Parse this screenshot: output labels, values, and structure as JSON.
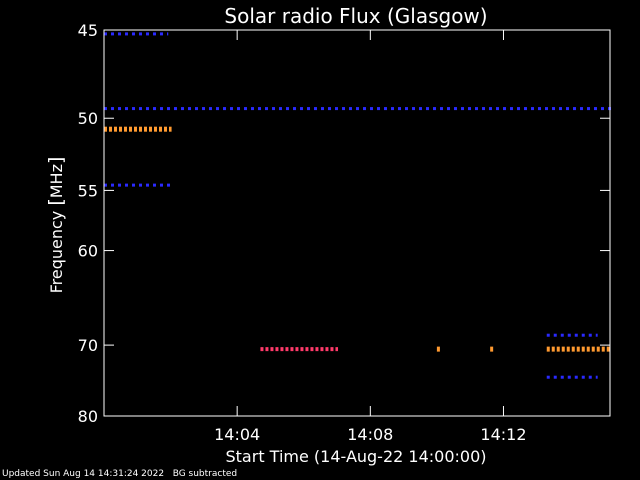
{
  "chart_data": {
    "type": "heatmap",
    "title": "Solar radio Flux (Glasgow)",
    "xlabel": "Start Time (14-Aug-22 14:00:00)",
    "ylabel_text": "Frequency ",
    "ylabel_unit": "MHz",
    "x_range_minutes": [
      0,
      15.2
    ],
    "y_range_mhz": [
      45,
      80
    ],
    "x_ticks": [
      {
        "minute": 4,
        "label": "14:04"
      },
      {
        "minute": 8,
        "label": "14:08"
      },
      {
        "minute": 12,
        "label": "14:12"
      }
    ],
    "y_ticks": [
      {
        "mhz": 45,
        "label": "45"
      },
      {
        "mhz": 50,
        "label": "50"
      },
      {
        "mhz": 55,
        "label": "55"
      },
      {
        "mhz": 60,
        "label": "60"
      },
      {
        "mhz": 70,
        "label": "70"
      },
      {
        "mhz": 80,
        "label": "80"
      }
    ],
    "bands": [
      {
        "mhz": 45.2,
        "t_start": 0.0,
        "t_end": 1.9,
        "intensity": "low"
      },
      {
        "mhz": 49.4,
        "t_start": 0.0,
        "t_end": 15.2,
        "intensity": "low"
      },
      {
        "mhz": 50.7,
        "t_start": 0.0,
        "t_end": 2.0,
        "intensity": "high"
      },
      {
        "mhz": 54.6,
        "t_start": 0.0,
        "t_end": 2.0,
        "intensity": "low"
      },
      {
        "mhz": 70.5,
        "t_start": 4.7,
        "t_end": 7.0,
        "intensity": "medium"
      },
      {
        "mhz": 70.5,
        "t_start": 10.0,
        "t_end": 10.1,
        "intensity": "high"
      },
      {
        "mhz": 70.5,
        "t_start": 11.6,
        "t_end": 11.7,
        "intensity": "high"
      },
      {
        "mhz": 70.5,
        "t_start": 13.3,
        "t_end": 15.2,
        "intensity": "high"
      },
      {
        "mhz": 68.8,
        "t_start": 13.3,
        "t_end": 14.8,
        "intensity": "low"
      },
      {
        "mhz": 74.2,
        "t_start": 13.3,
        "t_end": 14.8,
        "intensity": "low"
      }
    ],
    "colors": {
      "background": "#000000",
      "axis": "#ffffff",
      "low": "#2a2aff",
      "medium": "#ff3a6a",
      "high": "#ff9a30"
    }
  },
  "footer": {
    "updated": "Updated Sun Aug 14 14:31:24 2022",
    "note": "BG subtracted"
  }
}
